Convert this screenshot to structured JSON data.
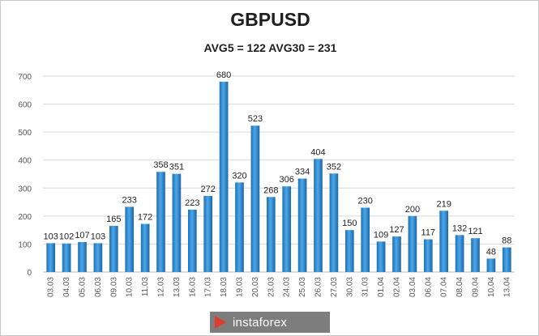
{
  "chart_data": {
    "type": "bar",
    "title": "GBPUSD",
    "subtitle": "AVG5 = 122 AVG30 = 231",
    "xlabel": "",
    "ylabel": "",
    "ylim": [
      0,
      700
    ],
    "yticks": [
      0,
      100,
      200,
      300,
      400,
      500,
      600,
      700
    ],
    "grid": true,
    "categories": [
      "03.03",
      "04.03",
      "05.03",
      "06.03",
      "09.03",
      "10.03",
      "11.03",
      "12.03",
      "13.03",
      "16.03",
      "17.03",
      "18.03",
      "19.03",
      "20.03",
      "23.03",
      "24.03",
      "25.03",
      "26.03",
      "27.03",
      "30.03",
      "31.03",
      "01.04",
      "02.04",
      "03.04",
      "06.04",
      "07.04",
      "08.04",
      "09.04",
      "10.04",
      "13.04"
    ],
    "values": [
      103,
      102,
      107,
      103,
      165,
      233,
      172,
      358,
      351,
      223,
      272,
      680,
      320,
      523,
      268,
      306,
      334,
      404,
      352,
      150,
      230,
      109,
      127,
      200,
      117,
      219,
      132,
      121,
      48,
      88
    ],
    "bar_color": "#2f8fd6"
  },
  "watermark": "instaforex"
}
